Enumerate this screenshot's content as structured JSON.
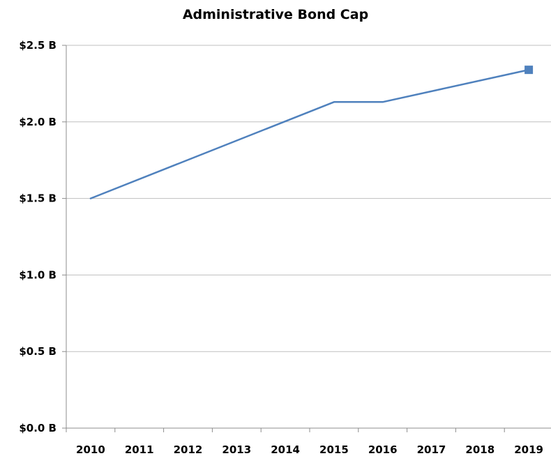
{
  "chart_data": {
    "type": "line",
    "title": "Administrative Bond Cap",
    "xlabel": "",
    "ylabel": "",
    "categories": [
      "2010",
      "2011",
      "2012",
      "2013",
      "2014",
      "2015",
      "2016",
      "2017",
      "2018",
      "2019"
    ],
    "y_ticks": [
      0,
      0.5,
      1.0,
      1.5,
      2.0,
      2.5
    ],
    "y_tick_labels": [
      "$0.0 B",
      "$0.5 B",
      "$1.0 B",
      "$1.5 B",
      "$2.0 B",
      "$2.5 B"
    ],
    "ylim": [
      0,
      2.5
    ],
    "grid": true,
    "legend": "none",
    "series": [
      {
        "values": [
          1.5,
          null,
          null,
          null,
          null,
          2.13,
          2.13,
          null,
          null,
          2.34
        ],
        "color": "#4f81bd",
        "end_marker": "square"
      }
    ]
  }
}
